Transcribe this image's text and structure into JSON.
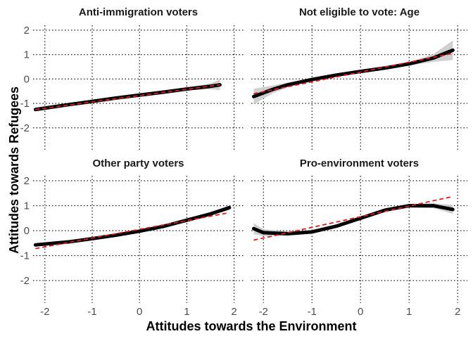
{
  "chart_data": {
    "type": "line",
    "xlabel": "Attitudes towards the Environment",
    "ylabel": "Attitudes towards Refugees",
    "xlim": [
      -2.25,
      2.2
    ],
    "ylim": [
      -2.9,
      2.2
    ],
    "x_ticks": [
      -2,
      -1,
      0,
      1,
      2
    ],
    "y_ticks": [
      -2,
      -1,
      0,
      1,
      2
    ],
    "grid": true,
    "series_styles": {
      "smooth": {
        "color": "#000000",
        "style": "solid-thick",
        "band": "#c8c8c8"
      },
      "linear": {
        "color": "#e41a1c",
        "style": "dashed"
      }
    },
    "panels": [
      {
        "title": "Anti-immigration voters",
        "smooth": {
          "x": [
            -2.2,
            -1.5,
            -1.0,
            -0.5,
            0.0,
            0.5,
            1.0,
            1.5,
            1.7
          ],
          "y": [
            -1.25,
            -1.05,
            -0.92,
            -0.78,
            -0.66,
            -0.54,
            -0.41,
            -0.3,
            -0.24
          ]
        },
        "band_halfwidth": [
          0.07,
          0.04,
          0.03,
          0.03,
          0.03,
          0.03,
          0.05,
          0.12,
          0.22
        ],
        "linear": {
          "x": [
            -2.2,
            1.7
          ],
          "y": [
            -1.25,
            -0.24
          ]
        }
      },
      {
        "title": "Not eligible to vote: Age",
        "smooth": {
          "x": [
            -2.2,
            -1.8,
            -1.5,
            -1.0,
            -0.5,
            0.0,
            0.5,
            1.0,
            1.5,
            1.9
          ],
          "y": [
            -0.72,
            -0.42,
            -0.24,
            -0.02,
            0.16,
            0.31,
            0.45,
            0.62,
            0.86,
            1.18
          ]
        },
        "band_halfwidth": [
          0.32,
          0.16,
          0.1,
          0.06,
          0.04,
          0.04,
          0.05,
          0.07,
          0.16,
          0.4
        ],
        "linear": {
          "x": [
            -2.2,
            1.9
          ],
          "y": [
            -0.6,
            1.05
          ]
        }
      },
      {
        "title": "Other party voters",
        "smooth": {
          "x": [
            -2.2,
            -1.5,
            -1.0,
            -0.5,
            0.0,
            0.5,
            1.0,
            1.5,
            1.9
          ],
          "y": [
            -0.57,
            -0.45,
            -0.32,
            -0.18,
            -0.02,
            0.17,
            0.42,
            0.67,
            0.92
          ]
        },
        "band_halfwidth": [
          0.07,
          0.04,
          0.03,
          0.03,
          0.03,
          0.03,
          0.04,
          0.06,
          0.09
        ],
        "linear": {
          "x": [
            -2.2,
            1.9
          ],
          "y": [
            -0.72,
            0.72
          ]
        }
      },
      {
        "title": "Pro-environment voters",
        "smooth": {
          "x": [
            -2.2,
            -2.0,
            -1.5,
            -1.0,
            -0.5,
            0.0,
            0.5,
            1.0,
            1.5,
            1.9
          ],
          "y": [
            0.08,
            -0.08,
            -0.12,
            -0.05,
            0.18,
            0.5,
            0.82,
            1.0,
            1.0,
            0.85
          ]
        },
        "band_halfwidth": [
          0.22,
          0.14,
          0.08,
          0.06,
          0.06,
          0.06,
          0.06,
          0.07,
          0.1,
          0.18
        ],
        "linear": {
          "x": [
            -2.2,
            1.9
          ],
          "y": [
            -0.38,
            1.37
          ]
        }
      }
    ]
  }
}
